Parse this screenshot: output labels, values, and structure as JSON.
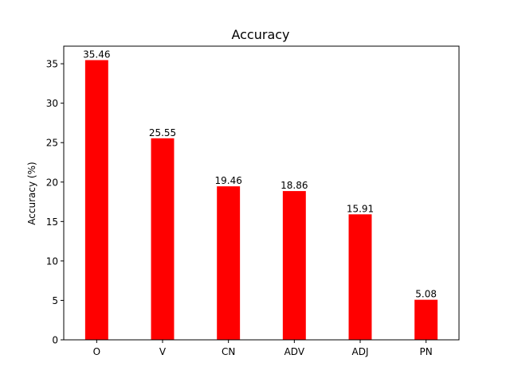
{
  "chart_data": {
    "type": "bar",
    "title": "Accuracy",
    "xlabel": "",
    "ylabel": "Accuracy (%)",
    "categories": [
      "O",
      "V",
      "CN",
      "ADV",
      "ADJ",
      "PN"
    ],
    "values": [
      35.46,
      25.55,
      19.46,
      18.86,
      15.91,
      5.08
    ],
    "data_labels": [
      "35.46",
      "25.55",
      "19.46",
      "18.86",
      "15.91",
      "5.08"
    ],
    "ylim": [
      0,
      37.23
    ],
    "yticks": [
      0,
      5,
      10,
      15,
      20,
      25,
      30,
      35
    ],
    "bar_color": "#ff0000",
    "grid": false,
    "legend": "none"
  }
}
